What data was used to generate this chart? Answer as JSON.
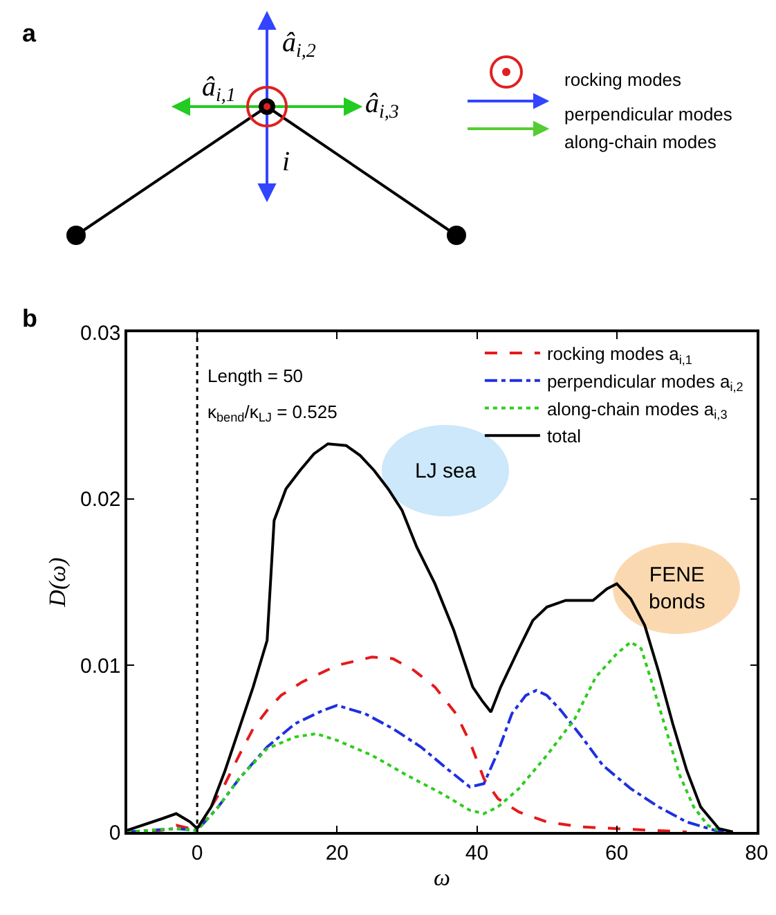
{
  "chart_data": [
    {
      "type": "other",
      "title": "a",
      "annotations": [
        "â$_{i,2}$",
        "â$_{i,1}$",
        "â$_{i,3}$",
        "i",
        "rocking modes",
        "perpendicular modes",
        "along-chain modes"
      ]
    },
    {
      "type": "line",
      "title": "b",
      "xlabel": "ω",
      "ylabel": "D(ω)",
      "xlim": [
        -10,
        80
      ],
      "xticks": [
        0,
        20,
        40,
        60,
        80
      ],
      "ylim": [
        0,
        0.03
      ],
      "yticks": [
        0,
        0.01,
        0.02,
        0.03
      ],
      "grid": false,
      "legend": "top right",
      "marker": "none",
      "ref_lines": [
        {
          "axis": "x",
          "value": 0,
          "line_style": "dotted",
          "color": "#000000"
        }
      ],
      "annotations": [
        "Length = 50",
        "κ$_{bend}$/κ$_{LJ}$ = 0.525",
        "LJ sea",
        "FENE bonds"
      ],
      "series": [
        {
          "name": "rocking modes a$_{i,1}$",
          "color": "#e41a1c",
          "line_style": "dashed",
          "x": [
            -10,
            -5,
            -3,
            0,
            2,
            4,
            6,
            8,
            10,
            12,
            15,
            20,
            25,
            28,
            31,
            34,
            37,
            39,
            41,
            43,
            46,
            50,
            55,
            60,
            65,
            70
          ],
          "values": [
            0,
            0.0001,
            0.0004,
            0.0001,
            0.0015,
            0.0029,
            0.0046,
            0.0062,
            0.0073,
            0.0082,
            0.009,
            0.01,
            0.0105,
            0.0104,
            0.0097,
            0.0087,
            0.0071,
            0.0054,
            0.0032,
            0.002,
            0.0012,
            0.0006,
            0.0003,
            0.0002,
            0.0001,
            0
          ]
        },
        {
          "name": "perpendicular modes a$_{i,2}$",
          "color": "#1f2fe0",
          "line_style": "dashdot",
          "x": [
            -10,
            -3,
            0,
            3,
            6,
            10,
            14,
            18,
            20,
            24,
            28,
            32,
            36,
            39,
            41,
            43,
            45,
            47,
            48.5,
            50,
            52,
            55,
            58,
            62,
            66,
            70,
            74,
            76
          ],
          "values": [
            0,
            0.0002,
            0.0001,
            0.0015,
            0.0032,
            0.0051,
            0.0065,
            0.0073,
            0.0076,
            0.0071,
            0.0062,
            0.0051,
            0.0037,
            0.0027,
            0.0029,
            0.0048,
            0.0071,
            0.0082,
            0.0085,
            0.0082,
            0.0073,
            0.0057,
            0.004,
            0.0026,
            0.0015,
            0.0006,
            0.0001,
            0
          ]
        },
        {
          "name": "along-chain modes a$_{i,3}$",
          "color": "#2ecc1e",
          "line_style": "dotted",
          "x": [
            -10,
            -3,
            0,
            3,
            6,
            10,
            14,
            17,
            20,
            25,
            30,
            35,
            39,
            41,
            43,
            46,
            50,
            54,
            57,
            60,
            62,
            63.5,
            65,
            67,
            69,
            71,
            73,
            75
          ],
          "values": [
            0,
            0.0002,
            0.0001,
            0.0015,
            0.0032,
            0.005,
            0.0057,
            0.0059,
            0.0055,
            0.0046,
            0.0034,
            0.0023,
            0.0013,
            0.0011,
            0.0015,
            0.0026,
            0.0046,
            0.0068,
            0.0093,
            0.0107,
            0.0114,
            0.011,
            0.009,
            0.0062,
            0.0034,
            0.0015,
            0.0004,
            0
          ]
        },
        {
          "name": "total",
          "color": "#000000",
          "line_style": "solid",
          "x": [
            -10,
            -5,
            -3,
            -1,
            0,
            2,
            4,
            6,
            8,
            10,
            11,
            12.7,
            14.7,
            16.7,
            18.7,
            21.3,
            23.3,
            25.3,
            27.3,
            29.3,
            31.4,
            34,
            36.7,
            39.4,
            40.7,
            42,
            43.4,
            46,
            48,
            50,
            52.7,
            56.6,
            58.6,
            60,
            62,
            64,
            66,
            68,
            70,
            72,
            74.6,
            76.6
          ],
          "values": [
            0.0001,
            0.0008,
            0.0011,
            0.0006,
            0.0002,
            0.0015,
            0.0037,
            0.0062,
            0.0087,
            0.0115,
            0.0187,
            0.0206,
            0.0217,
            0.0227,
            0.0233,
            0.0232,
            0.0226,
            0.0217,
            0.0206,
            0.0193,
            0.0171,
            0.0149,
            0.0121,
            0.0087,
            0.0079,
            0.0072,
            0.0087,
            0.011,
            0.0127,
            0.0135,
            0.0139,
            0.0139,
            0.0146,
            0.0149,
            0.014,
            0.0124,
            0.0096,
            0.0065,
            0.0037,
            0.0015,
            0.0002,
            0
          ]
        }
      ]
    }
  ]
}
